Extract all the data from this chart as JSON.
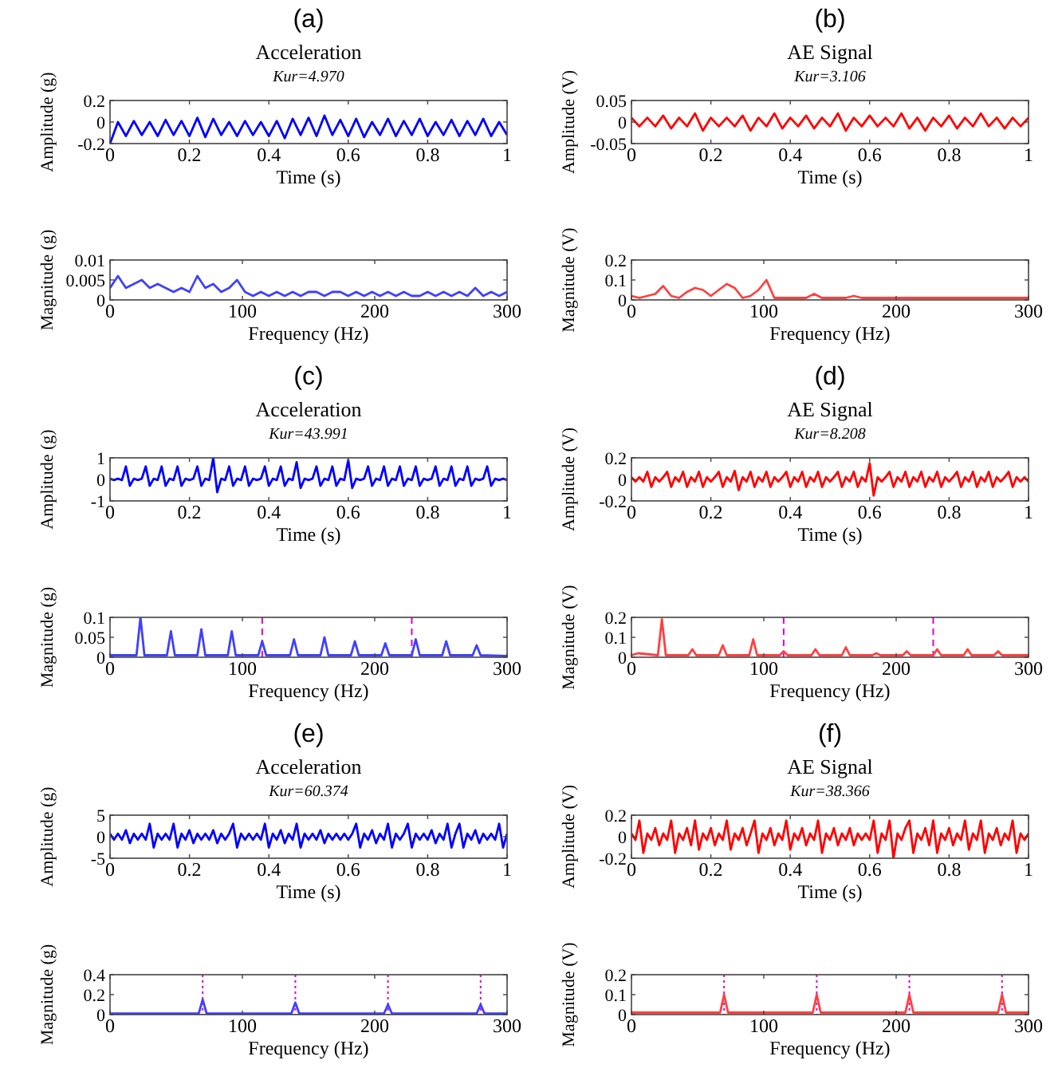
{
  "chart_data": [
    {
      "type": "line",
      "annotations": [
        "(a)"
      ],
      "title": "Acceleration",
      "subtitle": "Kur=4.970",
      "xlabel": "Time (s)",
      "ylabel": "Amplitude (g)",
      "xlim": [
        0,
        1
      ],
      "xticks": [
        0,
        0.2,
        0.4,
        0.6,
        0.8,
        1
      ],
      "ylim": [
        -0.2,
        0.2
      ],
      "yticks": [
        -0.2,
        0,
        0.2
      ],
      "x": [
        0,
        0.02,
        0.04,
        0.06,
        0.08,
        0.1,
        0.12,
        0.14,
        0.16,
        0.18,
        0.2,
        0.22,
        0.24,
        0.26,
        0.28,
        0.3,
        0.32,
        0.34,
        0.36,
        0.38,
        0.4,
        0.42,
        0.44,
        0.46,
        0.48,
        0.5,
        0.52,
        0.54,
        0.56,
        0.58,
        0.6,
        0.62,
        0.64,
        0.66,
        0.68,
        0.7,
        0.72,
        0.74,
        0.76,
        0.78,
        0.8,
        0.82,
        0.84,
        0.86,
        0.88,
        0.9,
        0.92,
        0.94,
        0.96,
        0.98,
        1
      ],
      "series": [
        {
          "color": "#0000ff",
          "values": [
            -0.2,
            0,
            -0.13,
            0.01,
            -0.12,
            0,
            -0.13,
            0.02,
            -0.12,
            0.01,
            -0.13,
            0.04,
            -0.14,
            0.03,
            -0.12,
            0,
            -0.13,
            0.01,
            -0.12,
            0,
            -0.13,
            0.01,
            -0.15,
            0.03,
            -0.12,
            0.04,
            -0.13,
            0.06,
            -0.12,
            0.02,
            -0.13,
            0.03,
            -0.14,
            0,
            -0.12,
            0.03,
            -0.13,
            0.01,
            -0.12,
            0.03,
            -0.13,
            0,
            -0.12,
            0.02,
            -0.13,
            0.01,
            -0.12,
            0.03,
            -0.13,
            0,
            -0.12
          ]
        }
      ]
    },
    {
      "type": "line",
      "annotations": [
        "(b)"
      ],
      "title": "AE Signal",
      "subtitle": "Kur=3.106",
      "xlabel": "Time (s)",
      "ylabel": "Amplitude (V)",
      "xlim": [
        0,
        1
      ],
      "xticks": [
        0,
        0.2,
        0.4,
        0.6,
        0.8,
        1
      ],
      "ylim": [
        -0.05,
        0.05
      ],
      "yticks": [
        -0.05,
        0,
        0.05
      ],
      "x": [
        0,
        0.02,
        0.04,
        0.06,
        0.08,
        0.1,
        0.12,
        0.14,
        0.16,
        0.18,
        0.2,
        0.22,
        0.24,
        0.26,
        0.28,
        0.3,
        0.32,
        0.34,
        0.36,
        0.38,
        0.4,
        0.42,
        0.44,
        0.46,
        0.48,
        0.5,
        0.52,
        0.54,
        0.56,
        0.58,
        0.6,
        0.62,
        0.64,
        0.66,
        0.68,
        0.7,
        0.72,
        0.74,
        0.76,
        0.78,
        0.8,
        0.82,
        0.84,
        0.86,
        0.88,
        0.9,
        0.92,
        0.94,
        0.96,
        0.98,
        1
      ],
      "series": [
        {
          "color": "#ff0000",
          "values": [
            0.01,
            -0.01,
            0.01,
            -0.01,
            0.015,
            -0.015,
            0.01,
            -0.01,
            0.02,
            -0.02,
            0.01,
            -0.01,
            0.01,
            -0.01,
            0.015,
            -0.02,
            0.01,
            -0.01,
            0.02,
            -0.015,
            0.01,
            -0.01,
            0.015,
            -0.015,
            0.01,
            -0.01,
            0.02,
            -0.02,
            0.01,
            -0.01,
            0.015,
            -0.01,
            0.01,
            -0.01,
            0.02,
            -0.015,
            0.01,
            -0.02,
            0.01,
            -0.01,
            0.015,
            -0.015,
            0.01,
            -0.01,
            0.02,
            -0.01,
            0.01,
            -0.015,
            0.01,
            -0.01,
            0.01
          ]
        }
      ]
    },
    {
      "type": "line",
      "xlabel": "Frequency (Hz)",
      "ylabel": "Magnitude (g)",
      "xlim": [
        0,
        300
      ],
      "xticks": [
        0,
        100,
        200,
        300
      ],
      "ylim": [
        0,
        0.01
      ],
      "yticks": [
        0,
        0.005,
        0.01
      ],
      "x": [
        0,
        6,
        12,
        18,
        24,
        30,
        36,
        42,
        48,
        54,
        60,
        66,
        72,
        78,
        84,
        90,
        96,
        102,
        108,
        114,
        120,
        126,
        132,
        138,
        144,
        150,
        156,
        162,
        168,
        174,
        180,
        186,
        192,
        198,
        204,
        210,
        216,
        222,
        228,
        234,
        240,
        246,
        252,
        258,
        264,
        270,
        276,
        282,
        288,
        294,
        300
      ],
      "series": [
        {
          "color": "#4040ff",
          "values": [
            0.003,
            0.006,
            0.003,
            0.004,
            0.005,
            0.003,
            0.004,
            0.003,
            0.002,
            0.003,
            0.002,
            0.006,
            0.003,
            0.004,
            0.002,
            0.003,
            0.005,
            0.002,
            0.001,
            0.002,
            0.001,
            0.002,
            0.001,
            0.002,
            0.001,
            0.002,
            0.002,
            0.001,
            0.002,
            0.002,
            0.001,
            0.002,
            0.001,
            0.002,
            0.001,
            0.002,
            0.001,
            0.002,
            0.001,
            0.001,
            0.002,
            0.001,
            0.002,
            0.001,
            0.002,
            0.001,
            0.003,
            0.001,
            0.002,
            0.001,
            0.002
          ]
        }
      ]
    },
    {
      "type": "line",
      "xlabel": "Frequency (Hz)",
      "ylabel": "Magnitude (V)",
      "xlim": [
        0,
        300
      ],
      "xticks": [
        0,
        100,
        200,
        300
      ],
      "ylim": [
        0,
        0.2
      ],
      "yticks": [
        0,
        0.1,
        0.2
      ],
      "x": [
        0,
        6,
        12,
        18,
        24,
        30,
        36,
        42,
        48,
        54,
        60,
        66,
        72,
        78,
        84,
        90,
        96,
        102,
        108,
        114,
        120,
        126,
        132,
        138,
        144,
        150,
        156,
        162,
        168,
        174,
        180,
        186,
        192,
        198,
        204,
        210,
        216,
        222,
        228,
        234,
        240,
        246,
        252,
        258,
        264,
        270,
        276,
        282,
        288,
        294,
        300
      ],
      "series": [
        {
          "color": "#ff4040",
          "values": [
            0.02,
            0.01,
            0.02,
            0.03,
            0.07,
            0.02,
            0.01,
            0.04,
            0.06,
            0.05,
            0.02,
            0.05,
            0.08,
            0.06,
            0.01,
            0.02,
            0.05,
            0.1,
            0.01,
            0.01,
            0.01,
            0.01,
            0.01,
            0.03,
            0.01,
            0.01,
            0.01,
            0.01,
            0.02,
            0.01,
            0.01,
            0.01,
            0.01,
            0.01,
            0.01,
            0.01,
            0.01,
            0.01,
            0.01,
            0.01,
            0.01,
            0.01,
            0.01,
            0.01,
            0.01,
            0.01,
            0.01,
            0.01,
            0.01,
            0.01,
            0.01
          ]
        }
      ]
    },
    {
      "type": "line",
      "annotations": [
        "(c)"
      ],
      "title": "Acceleration",
      "subtitle": "Kur=43.991",
      "xlabel": "Time (s)",
      "ylabel": "Amplitude (g)",
      "xlim": [
        0,
        1
      ],
      "xticks": [
        0,
        0.2,
        0.4,
        0.6,
        0.8,
        1
      ],
      "ylim": [
        -1,
        1
      ],
      "yticks": [
        -1,
        0,
        1
      ],
      "x": [
        0,
        0.01,
        0.02,
        0.03,
        0.04,
        0.05,
        0.06,
        0.07,
        0.08,
        0.09,
        0.1,
        0.11,
        0.12,
        0.13,
        0.14,
        0.15,
        0.16,
        0.17,
        0.18,
        0.19,
        0.2,
        0.21,
        0.22,
        0.23,
        0.24,
        0.25,
        0.26,
        0.27,
        0.28,
        0.29,
        0.3,
        0.31,
        0.32,
        0.33,
        0.34,
        0.35,
        0.36,
        0.37,
        0.38,
        0.39,
        0.4,
        0.41,
        0.42,
        0.43,
        0.44,
        0.45,
        0.46,
        0.47,
        0.48,
        0.49,
        0.5,
        0.51,
        0.52,
        0.53,
        0.54,
        0.55,
        0.56,
        0.57,
        0.58,
        0.59,
        0.6,
        0.61,
        0.62,
        0.63,
        0.64,
        0.65,
        0.66,
        0.67,
        0.68,
        0.69,
        0.7,
        0.71,
        0.72,
        0.73,
        0.74,
        0.75,
        0.76,
        0.77,
        0.78,
        0.79,
        0.8,
        0.81,
        0.82,
        0.83,
        0.84,
        0.85,
        0.86,
        0.87,
        0.88,
        0.89,
        0.9,
        0.91,
        0.92,
        0.93,
        0.94,
        0.95,
        0.96,
        0.97,
        0.98,
        0.99,
        1
      ],
      "series": [
        {
          "color": "#0000ff",
          "values": [
            0.03,
            -0.03,
            0.03,
            -0.03,
            0.6,
            -0.3,
            0.03,
            -0.03,
            0.03,
            0.6,
            -0.3,
            0.03,
            -0.03,
            0.6,
            -0.3,
            0.03,
            -0.03,
            0.6,
            -0.3,
            0.03,
            -0.03,
            0.03,
            0.6,
            -0.3,
            0.03,
            -0.03,
            1,
            -0.6,
            0.03,
            -0.03,
            0.6,
            -0.3,
            0.03,
            -0.03,
            0.6,
            -0.3,
            0.03,
            -0.03,
            0.03,
            0.6,
            -0.3,
            0.03,
            -0.03,
            0.6,
            -0.3,
            0.03,
            -0.03,
            0.8,
            -0.4,
            0.03,
            -0.03,
            0.03,
            0.6,
            -0.3,
            0.03,
            -0.03,
            0.6,
            -0.3,
            0.03,
            -0.03,
            0.9,
            -0.4,
            0.03,
            -0.03,
            0.03,
            0.6,
            -0.3,
            0.03,
            -0.03,
            0.6,
            -0.3,
            0.03,
            -0.03,
            0.6,
            -0.3,
            0.03,
            -0.03,
            0.6,
            -0.3,
            0.03,
            -0.03,
            0.03,
            0.6,
            -0.3,
            0.03,
            -0.03,
            0.6,
            -0.3,
            0.03,
            -0.03,
            0.6,
            -0.3,
            0.03,
            -0.03,
            0.03,
            0.6,
            -0.3,
            0.03,
            -0.03,
            0.03,
            -0.03
          ]
        }
      ]
    },
    {
      "type": "line",
      "annotations": [
        "(d)"
      ],
      "title": "AE Signal",
      "subtitle": "Kur=8.208",
      "xlabel": "Time (s)",
      "ylabel": "Amplitude (V)",
      "xlim": [
        0,
        1
      ],
      "xticks": [
        0,
        0.2,
        0.4,
        0.6,
        0.8,
        1
      ],
      "ylim": [
        -0.2,
        0.2
      ],
      "yticks": [
        -0.2,
        0,
        0.2
      ],
      "x": [
        0,
        0.01,
        0.02,
        0.03,
        0.04,
        0.05,
        0.06,
        0.07,
        0.08,
        0.09,
        0.1,
        0.11,
        0.12,
        0.13,
        0.14,
        0.15,
        0.16,
        0.17,
        0.18,
        0.19,
        0.2,
        0.21,
        0.22,
        0.23,
        0.24,
        0.25,
        0.26,
        0.27,
        0.28,
        0.29,
        0.3,
        0.31,
        0.32,
        0.33,
        0.34,
        0.35,
        0.36,
        0.37,
        0.38,
        0.39,
        0.4,
        0.41,
        0.42,
        0.43,
        0.44,
        0.45,
        0.46,
        0.47,
        0.48,
        0.49,
        0.5,
        0.51,
        0.52,
        0.53,
        0.54,
        0.55,
        0.56,
        0.57,
        0.58,
        0.59,
        0.6,
        0.61,
        0.62,
        0.63,
        0.64,
        0.65,
        0.66,
        0.67,
        0.68,
        0.69,
        0.7,
        0.71,
        0.72,
        0.73,
        0.74,
        0.75,
        0.76,
        0.77,
        0.78,
        0.79,
        0.8,
        0.81,
        0.82,
        0.83,
        0.84,
        0.85,
        0.86,
        0.87,
        0.88,
        0.89,
        0.9,
        0.91,
        0.92,
        0.93,
        0.94,
        0.95,
        0.96,
        0.97,
        0.98,
        0.99,
        1
      ],
      "series": [
        {
          "color": "#ff0000",
          "values": [
            0.02,
            -0.02,
            0.02,
            -0.02,
            0.07,
            -0.07,
            0.02,
            -0.02,
            0.02,
            0.07,
            -0.07,
            0.02,
            -0.02,
            0.07,
            -0.07,
            0.02,
            -0.02,
            0.07,
            -0.07,
            0.02,
            -0.02,
            0.02,
            0.07,
            -0.07,
            0.02,
            -0.02,
            0.08,
            -0.1,
            0.02,
            -0.02,
            0.07,
            -0.07,
            0.02,
            -0.02,
            0.07,
            -0.07,
            0.02,
            -0.02,
            0.02,
            0.07,
            -0.07,
            0.02,
            -0.02,
            0.07,
            -0.07,
            0.02,
            -0.02,
            0.07,
            -0.07,
            0.02,
            -0.02,
            0.02,
            0.07,
            -0.07,
            0.02,
            -0.02,
            0.07,
            -0.07,
            0.02,
            -0.02,
            0.15,
            -0.15,
            0.02,
            -0.02,
            0.02,
            0.07,
            -0.07,
            0.02,
            -0.02,
            0.07,
            -0.07,
            0.02,
            -0.02,
            0.07,
            -0.07,
            0.02,
            -0.02,
            0.07,
            -0.07,
            0.02,
            -0.02,
            0.02,
            0.07,
            -0.07,
            0.02,
            -0.02,
            0.07,
            -0.07,
            0.02,
            -0.02,
            0.07,
            -0.07,
            0.02,
            -0.02,
            0.02,
            0.07,
            -0.07,
            0.02,
            -0.02,
            0.02,
            -0.02
          ]
        }
      ]
    },
    {
      "type": "line",
      "xlabel": "Frequency (Hz)",
      "ylabel": "Magnitude (g)",
      "xlim": [
        0,
        300
      ],
      "xticks": [
        0,
        100,
        200,
        300
      ],
      "ylim": [
        0,
        0.1
      ],
      "yticks": [
        0,
        0.05,
        0.1
      ],
      "x": [
        0,
        5,
        20,
        23,
        26,
        43,
        46,
        49,
        66,
        69,
        72,
        89,
        92,
        95,
        112,
        115,
        118,
        136,
        139,
        142,
        159,
        162,
        165,
        182,
        185,
        188,
        205,
        208,
        211,
        228,
        231,
        234,
        251,
        254,
        257,
        274,
        277,
        280,
        300
      ],
      "series": [
        {
          "color": "#4040ff",
          "values": [
            0.005,
            0.005,
            0.005,
            0.1,
            0.005,
            0.005,
            0.065,
            0.005,
            0.005,
            0.07,
            0.005,
            0.005,
            0.065,
            0.005,
            0.005,
            0.04,
            0.005,
            0.005,
            0.045,
            0.005,
            0.005,
            0.05,
            0.005,
            0.005,
            0.04,
            0.005,
            0.005,
            0.035,
            0.005,
            0.005,
            0.045,
            0.005,
            0.005,
            0.04,
            0.005,
            0.005,
            0.03,
            0.005,
            0.003
          ]
        }
      ],
      "ref_lines": [
        {
          "axis": "x",
          "value": 115,
          "color": "#dd00dd",
          "line_style": "dashed"
        },
        {
          "axis": "x",
          "value": 228,
          "color": "#dd00dd",
          "line_style": "dashed"
        }
      ]
    },
    {
      "type": "line",
      "xlabel": "Frequency (Hz)",
      "ylabel": "Magnitude (V)",
      "xlim": [
        0,
        300
      ],
      "xticks": [
        0,
        100,
        200,
        300
      ],
      "ylim": [
        0,
        0.2
      ],
      "yticks": [
        0,
        0.1,
        0.2
      ],
      "x": [
        0,
        5,
        20,
        23,
        26,
        43,
        46,
        49,
        66,
        69,
        72,
        89,
        92,
        95,
        112,
        115,
        118,
        136,
        139,
        142,
        159,
        162,
        165,
        182,
        185,
        188,
        205,
        208,
        211,
        228,
        231,
        234,
        251,
        254,
        257,
        274,
        277,
        280,
        300
      ],
      "series": [
        {
          "color": "#ff4040",
          "values": [
            0.01,
            0.02,
            0.01,
            0.19,
            0.01,
            0.01,
            0.04,
            0.01,
            0.01,
            0.06,
            0.01,
            0.01,
            0.09,
            0.01,
            0.01,
            0.03,
            0.01,
            0.01,
            0.04,
            0.01,
            0.01,
            0.05,
            0.01,
            0.01,
            0.02,
            0.01,
            0.01,
            0.03,
            0.01,
            0.01,
            0.04,
            0.01,
            0.01,
            0.04,
            0.01,
            0.01,
            0.03,
            0.01,
            0.01
          ]
        }
      ],
      "ref_lines": [
        {
          "axis": "x",
          "value": 115,
          "color": "#dd00dd",
          "line_style": "dashed"
        },
        {
          "axis": "x",
          "value": 228,
          "color": "#dd00dd",
          "line_style": "dashed"
        }
      ]
    },
    {
      "type": "line",
      "annotations": [
        "(e)"
      ],
      "title": "Acceleration",
      "subtitle": "Kur=60.374",
      "xlabel": "Time (s)",
      "ylabel": "Amplitude (g)",
      "xlim": [
        0,
        1
      ],
      "xticks": [
        0,
        0.2,
        0.4,
        0.6,
        0.8,
        1
      ],
      "ylim": [
        -5,
        5
      ],
      "yticks": [
        -5,
        0,
        5
      ],
      "x": [
        0,
        0.01,
        0.02,
        0.03,
        0.04,
        0.05,
        0.06,
        0.07,
        0.08,
        0.09,
        0.1,
        0.11,
        0.12,
        0.13,
        0.14,
        0.15,
        0.16,
        0.17,
        0.18,
        0.19,
        0.2,
        0.21,
        0.22,
        0.23,
        0.24,
        0.25,
        0.26,
        0.27,
        0.28,
        0.29,
        0.3,
        0.31,
        0.32,
        0.33,
        0.34,
        0.35,
        0.36,
        0.37,
        0.38,
        0.39,
        0.4,
        0.41,
        0.42,
        0.43,
        0.44,
        0.45,
        0.46,
        0.47,
        0.48,
        0.49,
        0.5,
        0.51,
        0.52,
        0.53,
        0.54,
        0.55,
        0.56,
        0.57,
        0.58,
        0.59,
        0.6,
        0.61,
        0.62,
        0.63,
        0.64,
        0.65,
        0.66,
        0.67,
        0.68,
        0.69,
        0.7,
        0.71,
        0.72,
        0.73,
        0.74,
        0.75,
        0.76,
        0.77,
        0.78,
        0.79,
        0.8,
        0.81,
        0.82,
        0.83,
        0.84,
        0.85,
        0.86,
        0.87,
        0.88,
        0.89,
        0.9,
        0.91,
        0.92,
        0.93,
        0.94,
        0.95,
        0.96,
        0.97,
        0.98,
        0.99,
        1
      ],
      "series": [
        {
          "color": "#0000ff",
          "values": [
            0.7,
            -0.7,
            0.7,
            -0.7,
            1.5,
            -1.5,
            0.7,
            -0.7,
            0.7,
            -0.7,
            3,
            -2.5,
            0.7,
            -0.7,
            0.7,
            -0.7,
            3,
            -2.5,
            0.7,
            -0.7,
            1.5,
            -1.5,
            0.7,
            -0.7,
            0.7,
            -0.7,
            1.5,
            -1.5,
            0.7,
            -0.7,
            0.7,
            3,
            -2.5,
            0.7,
            -0.7,
            0.7,
            -0.7,
            0.7,
            -0.7,
            3,
            -2.5,
            0.7,
            -0.7,
            1.5,
            -1.5,
            0.7,
            -0.7,
            3,
            -2.5,
            0.7,
            -0.7,
            0.7,
            -0.7,
            1.5,
            -1.5,
            0.7,
            -0.7,
            0.7,
            -0.7,
            0.7,
            -0.7,
            0.7,
            3,
            -2.5,
            0.7,
            -0.7,
            1.5,
            -1.5,
            0.7,
            -0.7,
            3,
            -2.5,
            0.7,
            -0.7,
            0.7,
            3,
            -2.5,
            0.7,
            -0.7,
            0.7,
            -0.7,
            1.5,
            -1.5,
            0.7,
            -0.7,
            3,
            -2.5,
            0.7,
            3,
            -2.5,
            0.7,
            -0.7,
            1.5,
            -1.5,
            0.7,
            -0.7,
            0.7,
            -0.7,
            3,
            -2.5,
            0.7
          ]
        }
      ]
    },
    {
      "type": "line",
      "annotations": [
        "(f)"
      ],
      "title": "AE Signal",
      "subtitle": "Kur=38.366",
      "xlabel": "Time (s)",
      "ylabel": "Amplitude (V)",
      "xlim": [
        0,
        1
      ],
      "xticks": [
        0,
        0.2,
        0.4,
        0.6,
        0.8,
        1
      ],
      "ylim": [
        -0.2,
        0.2
      ],
      "yticks": [
        -0.2,
        0,
        0.2
      ],
      "x": [
        0,
        0.01,
        0.02,
        0.03,
        0.04,
        0.05,
        0.06,
        0.07,
        0.08,
        0.09,
        0.1,
        0.11,
        0.12,
        0.13,
        0.14,
        0.15,
        0.16,
        0.17,
        0.18,
        0.19,
        0.2,
        0.21,
        0.22,
        0.23,
        0.24,
        0.25,
        0.26,
        0.27,
        0.28,
        0.29,
        0.3,
        0.31,
        0.32,
        0.33,
        0.34,
        0.35,
        0.36,
        0.37,
        0.38,
        0.39,
        0.4,
        0.41,
        0.42,
        0.43,
        0.44,
        0.45,
        0.46,
        0.47,
        0.48,
        0.49,
        0.5,
        0.51,
        0.52,
        0.53,
        0.54,
        0.55,
        0.56,
        0.57,
        0.58,
        0.59,
        0.6,
        0.61,
        0.62,
        0.63,
        0.64,
        0.65,
        0.66,
        0.67,
        0.68,
        0.69,
        0.7,
        0.71,
        0.72,
        0.73,
        0.74,
        0.75,
        0.76,
        0.77,
        0.78,
        0.79,
        0.8,
        0.81,
        0.82,
        0.83,
        0.84,
        0.85,
        0.86,
        0.87,
        0.88,
        0.89,
        0.9,
        0.91,
        0.92,
        0.93,
        0.94,
        0.95,
        0.96,
        0.97,
        0.98,
        0.99,
        1
      ],
      "series": [
        {
          "color": "#ff0000",
          "values": [
            0.03,
            -0.03,
            0.15,
            -0.15,
            0.03,
            -0.03,
            0.08,
            -0.08,
            0.03,
            -0.03,
            0.15,
            -0.15,
            0.03,
            -0.03,
            0.08,
            -0.08,
            0.15,
            -0.12,
            0.03,
            -0.03,
            0.08,
            -0.08,
            0.03,
            -0.03,
            0.15,
            -0.12,
            0.03,
            -0.03,
            0.08,
            -0.08,
            0.03,
            0.15,
            -0.15,
            0.03,
            -0.03,
            0.08,
            -0.08,
            0.03,
            -0.03,
            0.15,
            -0.12,
            0.03,
            -0.03,
            0.08,
            -0.08,
            0.03,
            -0.03,
            0.15,
            -0.15,
            0.03,
            -0.03,
            0.08,
            -0.08,
            0.03,
            -0.03,
            0.08,
            -0.08,
            0.03,
            -0.03,
            0.03,
            -0.03,
            0.15,
            -0.15,
            0.03,
            -0.03,
            0.15,
            -0.2,
            0.03,
            -0.03,
            0.08,
            0.15,
            -0.15,
            0.03,
            -0.03,
            0.08,
            -0.08,
            0.15,
            -0.15,
            0.03,
            -0.03,
            0.08,
            -0.08,
            0.03,
            -0.03,
            0.15,
            -0.12,
            0.03,
            -0.03,
            0.15,
            -0.15,
            0.03,
            -0.03,
            0.08,
            -0.08,
            0.03,
            -0.03,
            0.15,
            -0.15,
            0.03,
            -0.03,
            0.03
          ]
        }
      ]
    },
    {
      "type": "line",
      "xlabel": "Frequency (Hz)",
      "ylabel": "Magnitude (g)",
      "xlim": [
        0,
        300
      ],
      "xticks": [
        0,
        100,
        200,
        300
      ],
      "ylim": [
        0,
        0.4
      ],
      "yticks": [
        0,
        0.2,
        0.4
      ],
      "x": [
        0,
        50,
        67,
        70,
        73,
        137,
        140,
        143,
        207,
        210,
        213,
        277,
        280,
        283,
        300
      ],
      "series": [
        {
          "color": "#4040ff",
          "values": [
            0.01,
            0.01,
            0.01,
            0.15,
            0.01,
            0.01,
            0.12,
            0.01,
            0.01,
            0.1,
            0.01,
            0.01,
            0.1,
            0.01,
            0.01
          ]
        }
      ],
      "ref_lines": [
        {
          "axis": "x",
          "value": 70,
          "color": "#dd00dd",
          "line_style": "dotted"
        },
        {
          "axis": "x",
          "value": 140,
          "color": "#dd00dd",
          "line_style": "dotted"
        },
        {
          "axis": "x",
          "value": 210,
          "color": "#dd00dd",
          "line_style": "dotted"
        },
        {
          "axis": "x",
          "value": 280,
          "color": "#dd00dd",
          "line_style": "dotted"
        }
      ]
    },
    {
      "type": "line",
      "xlabel": "Frequency (Hz)",
      "ylabel": "Magnitude (V)",
      "xlim": [
        0,
        300
      ],
      "xticks": [
        0,
        100,
        200,
        300
      ],
      "ylim": [
        0,
        0.2
      ],
      "yticks": [
        0,
        0.1,
        0.2
      ],
      "x": [
        0,
        50,
        67,
        70,
        73,
        137,
        140,
        143,
        207,
        210,
        213,
        277,
        280,
        283,
        300
      ],
      "series": [
        {
          "color": "#ff4040",
          "values": [
            0.01,
            0.01,
            0.01,
            0.1,
            0.01,
            0.01,
            0.1,
            0.01,
            0.01,
            0.1,
            0.01,
            0.01,
            0.1,
            0.01,
            0.01
          ]
        }
      ],
      "ref_lines": [
        {
          "axis": "x",
          "value": 70,
          "color": "#dd00dd",
          "line_style": "dotted"
        },
        {
          "axis": "x",
          "value": 140,
          "color": "#dd00dd",
          "line_style": "dotted"
        },
        {
          "axis": "x",
          "value": 210,
          "color": "#dd00dd",
          "line_style": "dotted"
        },
        {
          "axis": "x",
          "value": 280,
          "color": "#dd00dd",
          "line_style": "dotted"
        }
      ]
    }
  ]
}
